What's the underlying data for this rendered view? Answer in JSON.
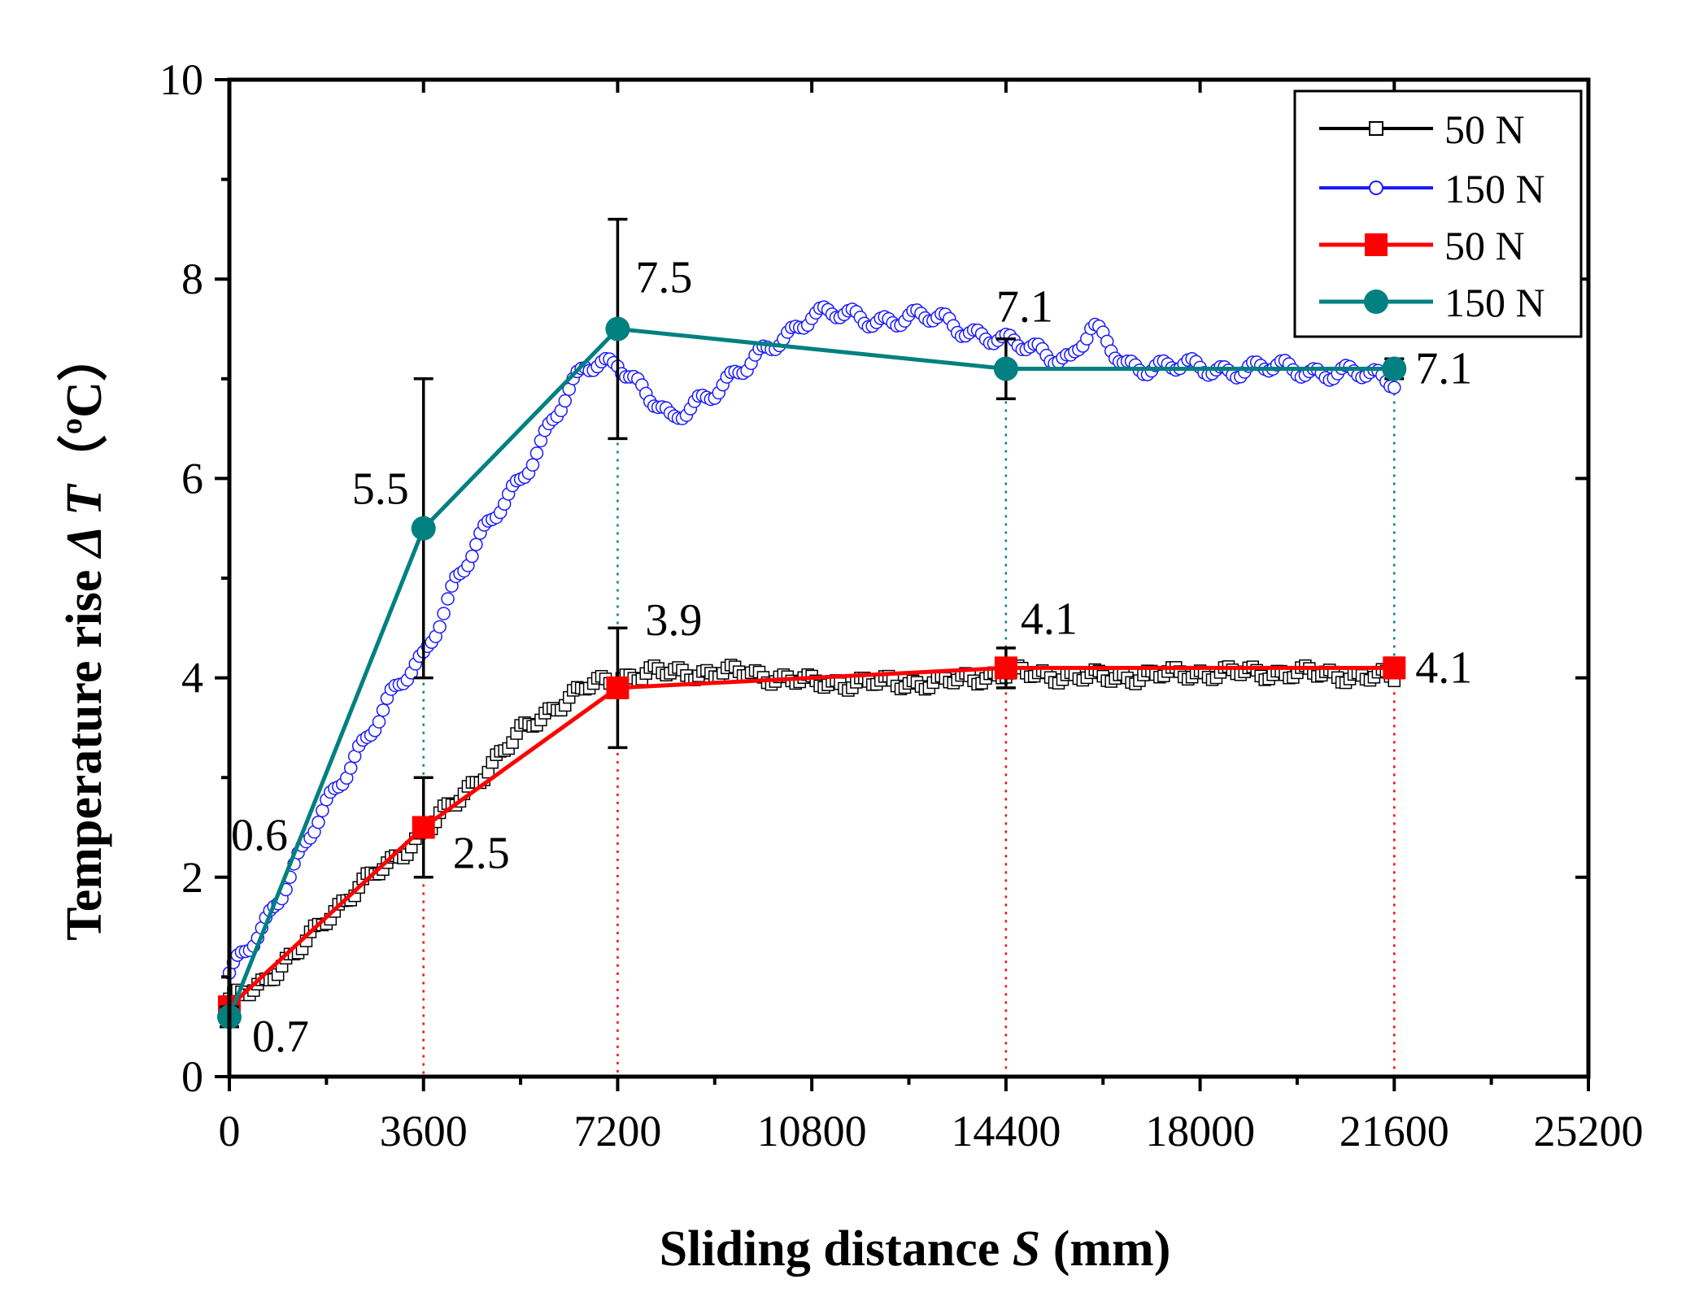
{
  "chart_data": {
    "type": "line",
    "xlabel": "Sliding distance ",
    "xlabel_var": "S",
    "xlabel_unit": " (mm)",
    "ylabel": "Temperature rise ",
    "ylabel_var": "Δ T",
    "ylabel_unit": "（ºC）",
    "xlim": [
      0,
      25200
    ],
    "ylim": [
      0,
      10
    ],
    "x_ticks": [
      0,
      3600,
      7200,
      10800,
      14400,
      18000,
      21600,
      25200
    ],
    "x_tick_labels": [
      "0",
      "3600",
      "7200",
      "10800",
      "14400",
      "18000",
      "21600",
      "25200"
    ],
    "y_ticks": [
      0,
      2,
      4,
      6,
      8,
      10
    ],
    "y_tick_labels": [
      "0",
      "2",
      "4",
      "6",
      "8",
      "10"
    ],
    "legend_position": "top-right",
    "series": [
      {
        "name": "50 N",
        "style": "open-square-dense",
        "color": "#000000",
        "curve": [
          [
            0,
            0.75
          ],
          [
            600,
            0.95
          ],
          [
            1200,
            1.2
          ],
          [
            1800,
            1.6
          ],
          [
            2400,
            1.9
          ],
          [
            3000,
            2.15
          ],
          [
            3600,
            2.45
          ],
          [
            4200,
            2.75
          ],
          [
            4800,
            3.1
          ],
          [
            5400,
            3.45
          ],
          [
            6000,
            3.7
          ],
          [
            6600,
            3.9
          ],
          [
            7200,
            4.0
          ],
          [
            7800,
            4.05
          ],
          [
            8400,
            4.05
          ],
          [
            9600,
            4.05
          ],
          [
            10800,
            3.95
          ],
          [
            12000,
            3.95
          ],
          [
            13200,
            3.95
          ],
          [
            14400,
            4.05
          ],
          [
            16200,
            4.0
          ],
          [
            18000,
            4.05
          ],
          [
            19800,
            4.05
          ],
          [
            21600,
            4.0
          ]
        ]
      },
      {
        "name": "150 N",
        "style": "open-circle-dense",
        "color": "#1a1aff",
        "curve": [
          [
            0,
            1.0
          ],
          [
            600,
            1.5
          ],
          [
            1200,
            2.1
          ],
          [
            1800,
            2.7
          ],
          [
            2400,
            3.3
          ],
          [
            3000,
            3.8
          ],
          [
            3600,
            4.2
          ],
          [
            4200,
            5.0
          ],
          [
            4800,
            5.5
          ],
          [
            5400,
            6.0
          ],
          [
            6000,
            6.6
          ],
          [
            6600,
            7.1
          ],
          [
            7200,
            7.2
          ],
          [
            7800,
            6.8
          ],
          [
            8200,
            6.55
          ],
          [
            8700,
            6.8
          ],
          [
            9600,
            7.1
          ],
          [
            10200,
            7.4
          ],
          [
            10800,
            7.65
          ],
          [
            12000,
            7.6
          ],
          [
            13200,
            7.6
          ],
          [
            14400,
            7.35
          ],
          [
            15000,
            7.3
          ],
          [
            15600,
            7.2
          ],
          [
            16000,
            7.5
          ],
          [
            16600,
            7.15
          ],
          [
            18000,
            7.1
          ],
          [
            19800,
            7.1
          ],
          [
            21600,
            7.0
          ]
        ]
      },
      {
        "name": "50 N",
        "style": "filled-square",
        "color": "#ff0000",
        "x": [
          0,
          3600,
          7200,
          14400,
          21600
        ],
        "y": [
          0.7,
          2.5,
          3.9,
          4.1,
          4.1
        ],
        "err": [
          0.1,
          0.5,
          0.6,
          0.2,
          0.1
        ],
        "point_labels": [
          "0.7",
          "2.5",
          "3.9",
          "4.1",
          "4.1"
        ]
      },
      {
        "name": "150 N",
        "style": "filled-circle",
        "color": "#008080",
        "x": [
          0,
          3600,
          7200,
          14400,
          21600
        ],
        "y": [
          0.6,
          5.5,
          7.5,
          7.1,
          7.1
        ],
        "err": [
          0.1,
          1.5,
          1.1,
          0.3,
          0.1
        ],
        "point_labels": [
          "0.6",
          "5.5",
          "7.5",
          "7.1",
          "7.1"
        ]
      }
    ]
  }
}
